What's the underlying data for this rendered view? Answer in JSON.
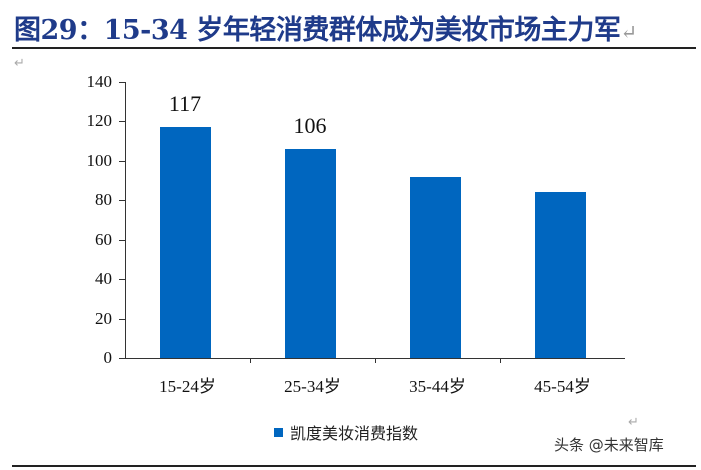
{
  "header": {
    "title": "图29：15-34 岁年轻消费群体成为美妆市场主力军",
    "return_mark": "↵"
  },
  "paragraph_mark": "↵",
  "watermark": "头条 @未来智库",
  "legend": {
    "label": "凯度美妆消费指数",
    "color": "#0066bf"
  },
  "y_ticks": [
    "0",
    "20",
    "40",
    "60",
    "80",
    "100",
    "120",
    "140"
  ],
  "bars": [
    {
      "category": "15-24岁",
      "value": 117,
      "label": "117"
    },
    {
      "category": "25-34岁",
      "value": 106,
      "label": "106"
    },
    {
      "category": "35-44岁",
      "value": 92,
      "label": ""
    },
    {
      "category": "45-54岁",
      "value": 84,
      "label": ""
    }
  ],
  "chart_data": {
    "type": "bar",
    "title": "图29：15-34 岁年轻消费群体成为美妆市场主力军",
    "categories": [
      "15-24岁",
      "25-34岁",
      "35-44岁",
      "45-54岁"
    ],
    "series": [
      {
        "name": "凯度美妆消费指数",
        "values": [
          117,
          106,
          92,
          84
        ],
        "color": "#0066bf"
      }
    ],
    "data_labels": {
      "15-24岁": 117,
      "25-34岁": 106
    },
    "xlabel": "",
    "ylabel": "",
    "ylim": [
      0,
      140
    ],
    "yticks": [
      0,
      20,
      40,
      60,
      80,
      100,
      120,
      140
    ],
    "grid": false,
    "legend_position": "bottom"
  }
}
